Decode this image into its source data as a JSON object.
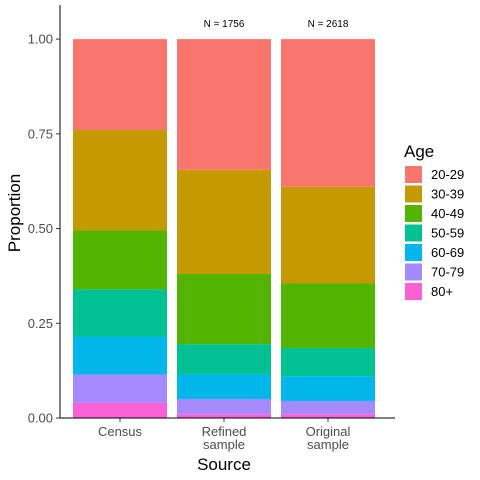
{
  "chart_data": {
    "type": "bar",
    "stacked": true,
    "categories": [
      [
        "Census"
      ],
      [
        "Refined",
        "sample"
      ],
      [
        "Original",
        "sample"
      ]
    ],
    "xlabel": "Source",
    "ylabel": "Proportion",
    "ylim": [
      0,
      1.09
    ],
    "yticks": [
      "0.00",
      "0.25",
      "0.50",
      "0.75",
      "1.00"
    ],
    "ytick_values": [
      0,
      0.25,
      0.5,
      0.75,
      1.0
    ],
    "grid": false,
    "legend": {
      "title": "Age",
      "position": "right"
    },
    "annotations": [
      "",
      "N = 1756",
      "N = 2618"
    ],
    "series": [
      {
        "name": "20-29",
        "color": "#F8766D",
        "values": [
          0.24,
          0.345,
          0.39
        ]
      },
      {
        "name": "30-39",
        "color": "#C49A00",
        "values": [
          0.265,
          0.275,
          0.255
        ]
      },
      {
        "name": "40-49",
        "color": "#53B400",
        "values": [
          0.155,
          0.185,
          0.17
        ]
      },
      {
        "name": "50-59",
        "color": "#00C094",
        "values": [
          0.125,
          0.08,
          0.075
        ]
      },
      {
        "name": "60-69",
        "color": "#00B6EB",
        "values": [
          0.1,
          0.065,
          0.065
        ]
      },
      {
        "name": "70-79",
        "color": "#A58AFF",
        "values": [
          0.075,
          0.04,
          0.035
        ]
      },
      {
        "name": "80+",
        "color": "#FB61D7",
        "values": [
          0.04,
          0.01,
          0.01
        ]
      }
    ]
  }
}
